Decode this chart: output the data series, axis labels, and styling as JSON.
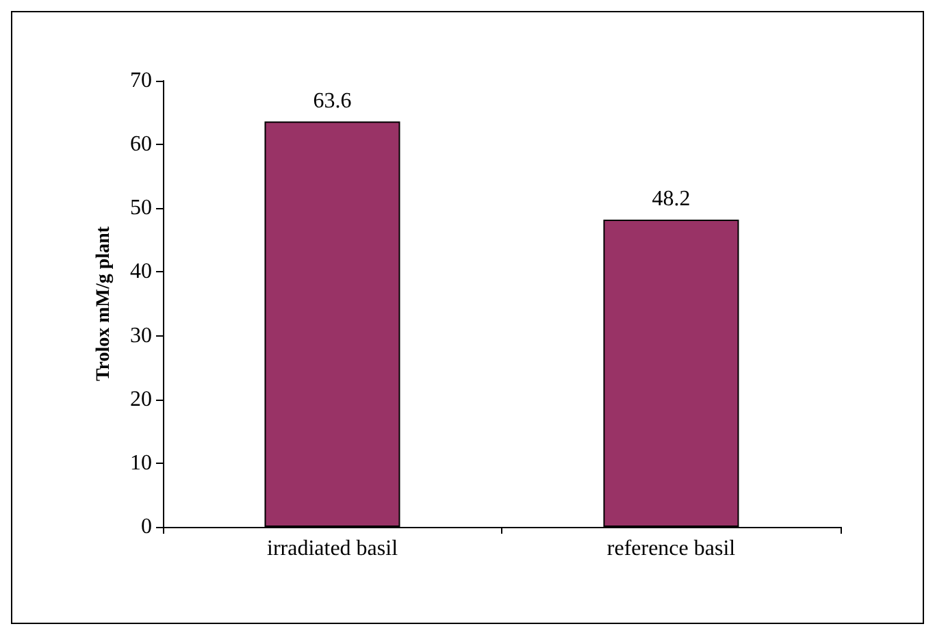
{
  "chart_data": {
    "type": "bar",
    "ylabel": "Trolox mM/g plant",
    "categories": [
      "irradiated basil",
      "reference basil"
    ],
    "values": [
      63.6,
      48.2
    ],
    "color": "#993366",
    "ylim": [
      0,
      70
    ],
    "yticks": [
      0,
      10,
      20,
      30,
      40,
      50,
      60,
      70
    ],
    "data_labels": true
  }
}
